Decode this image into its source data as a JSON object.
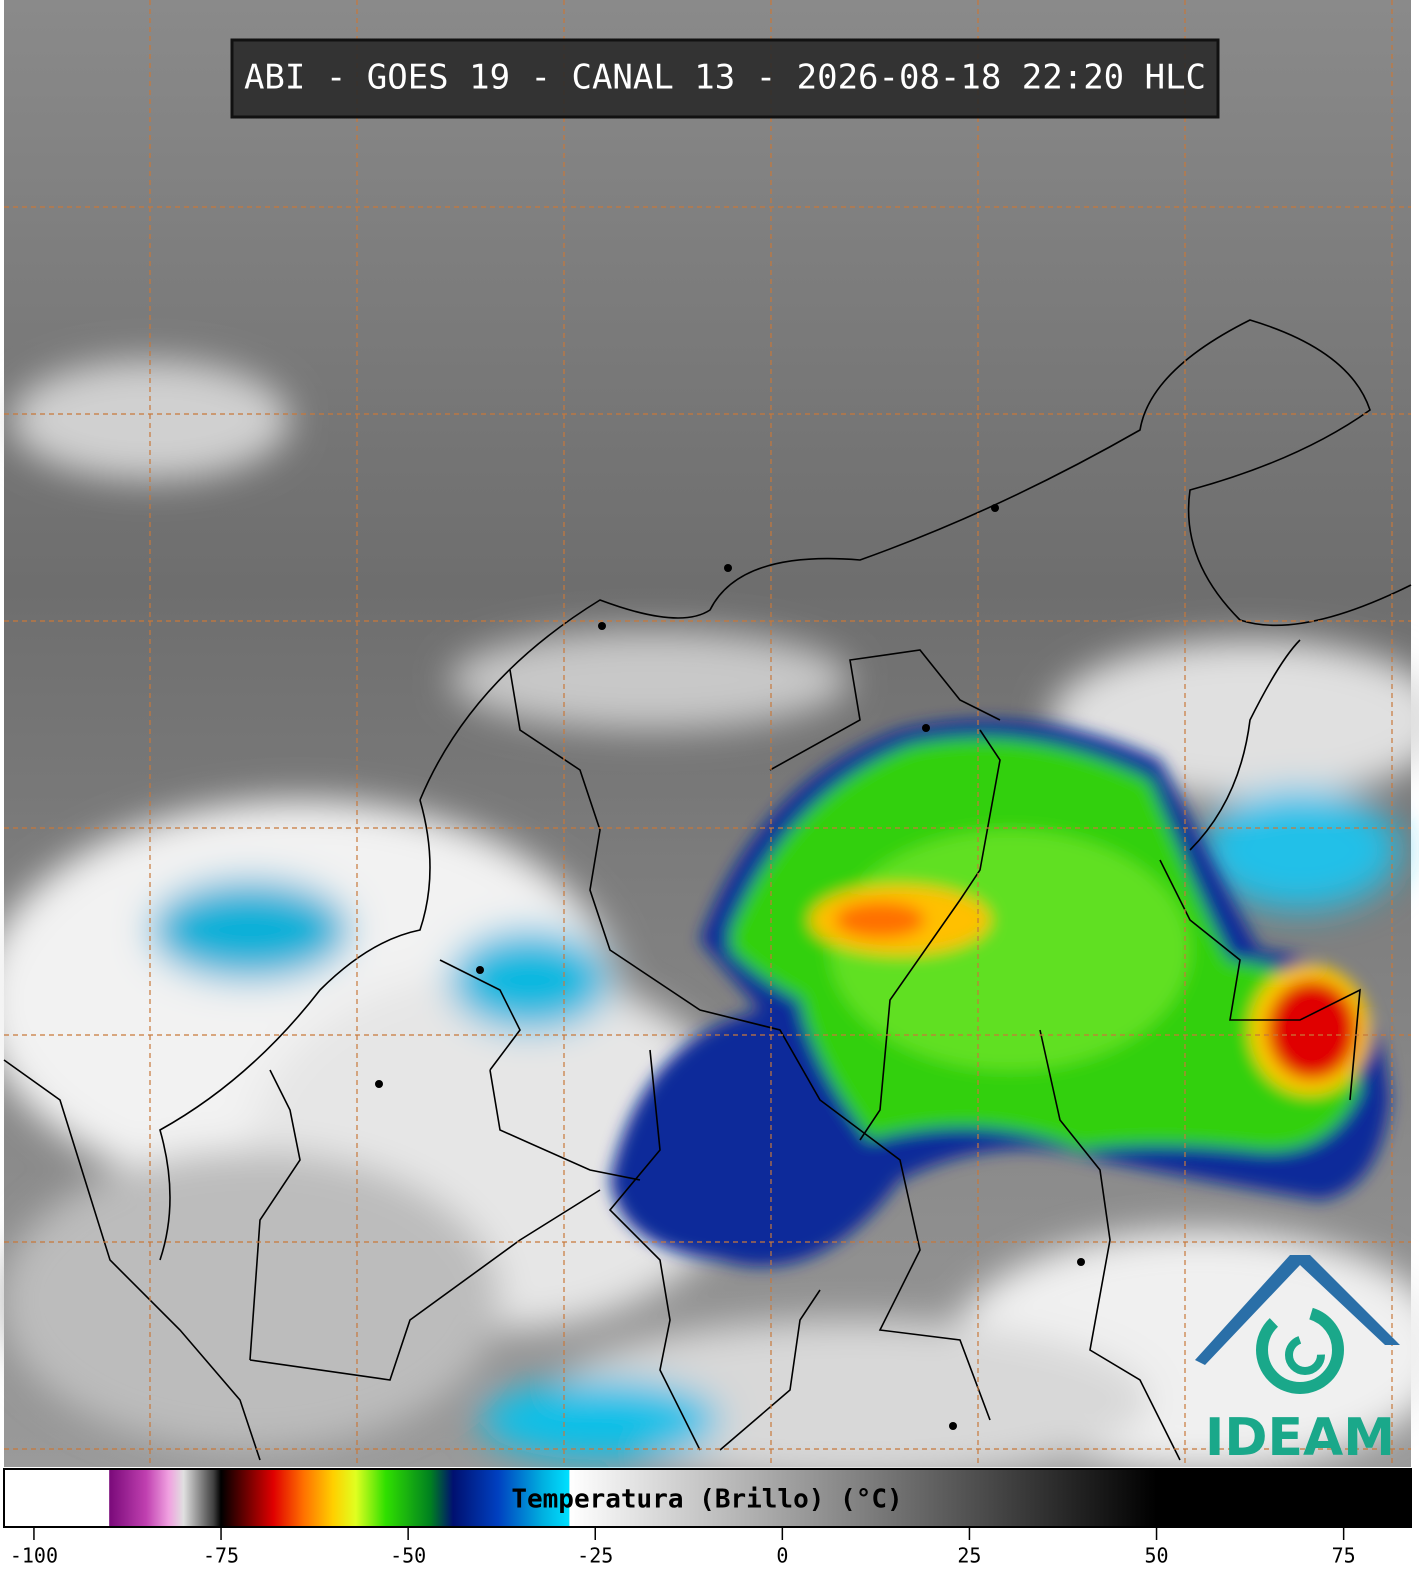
{
  "header": {
    "title": "ABI - GOES 19 - CANAL 13 - 2026-08-18 22:20 HLC"
  },
  "colorbar": {
    "label": "Temperatura (Brillo) (°C)",
    "lim": [
      -104,
      84
    ],
    "ticks": [
      -100,
      -75,
      -50,
      -25,
      0,
      25,
      50,
      75
    ],
    "stops": [
      {
        "value": -104,
        "color": "#ffffff"
      },
      {
        "value": -90,
        "color": "#ffffff"
      },
      {
        "value": -89.9,
        "color": "#7a0a7a"
      },
      {
        "value": -85,
        "color": "#c040b0"
      },
      {
        "value": -82,
        "color": "#f0a0e0"
      },
      {
        "value": -80,
        "color": "#e0e0e0"
      },
      {
        "value": -76,
        "color": "#404040"
      },
      {
        "value": -75,
        "color": "#000000"
      },
      {
        "value": -72,
        "color": "#600000"
      },
      {
        "value": -68,
        "color": "#e00000"
      },
      {
        "value": -64,
        "color": "#ff7000"
      },
      {
        "value": -60,
        "color": "#ffd000"
      },
      {
        "value": -57,
        "color": "#e0ff20"
      },
      {
        "value": -53,
        "color": "#30e000"
      },
      {
        "value": -47,
        "color": "#008020"
      },
      {
        "value": -44,
        "color": "#001070"
      },
      {
        "value": -38,
        "color": "#0040c0"
      },
      {
        "value": -32,
        "color": "#00b0e0"
      },
      {
        "value": -28.5,
        "color": "#00e0ff"
      },
      {
        "value": -28.4,
        "color": "#ffffff"
      },
      {
        "value": 50,
        "color": "#000000"
      },
      {
        "value": 84,
        "color": "#000000"
      }
    ]
  },
  "logo": {
    "text": "IDEAM"
  }
}
